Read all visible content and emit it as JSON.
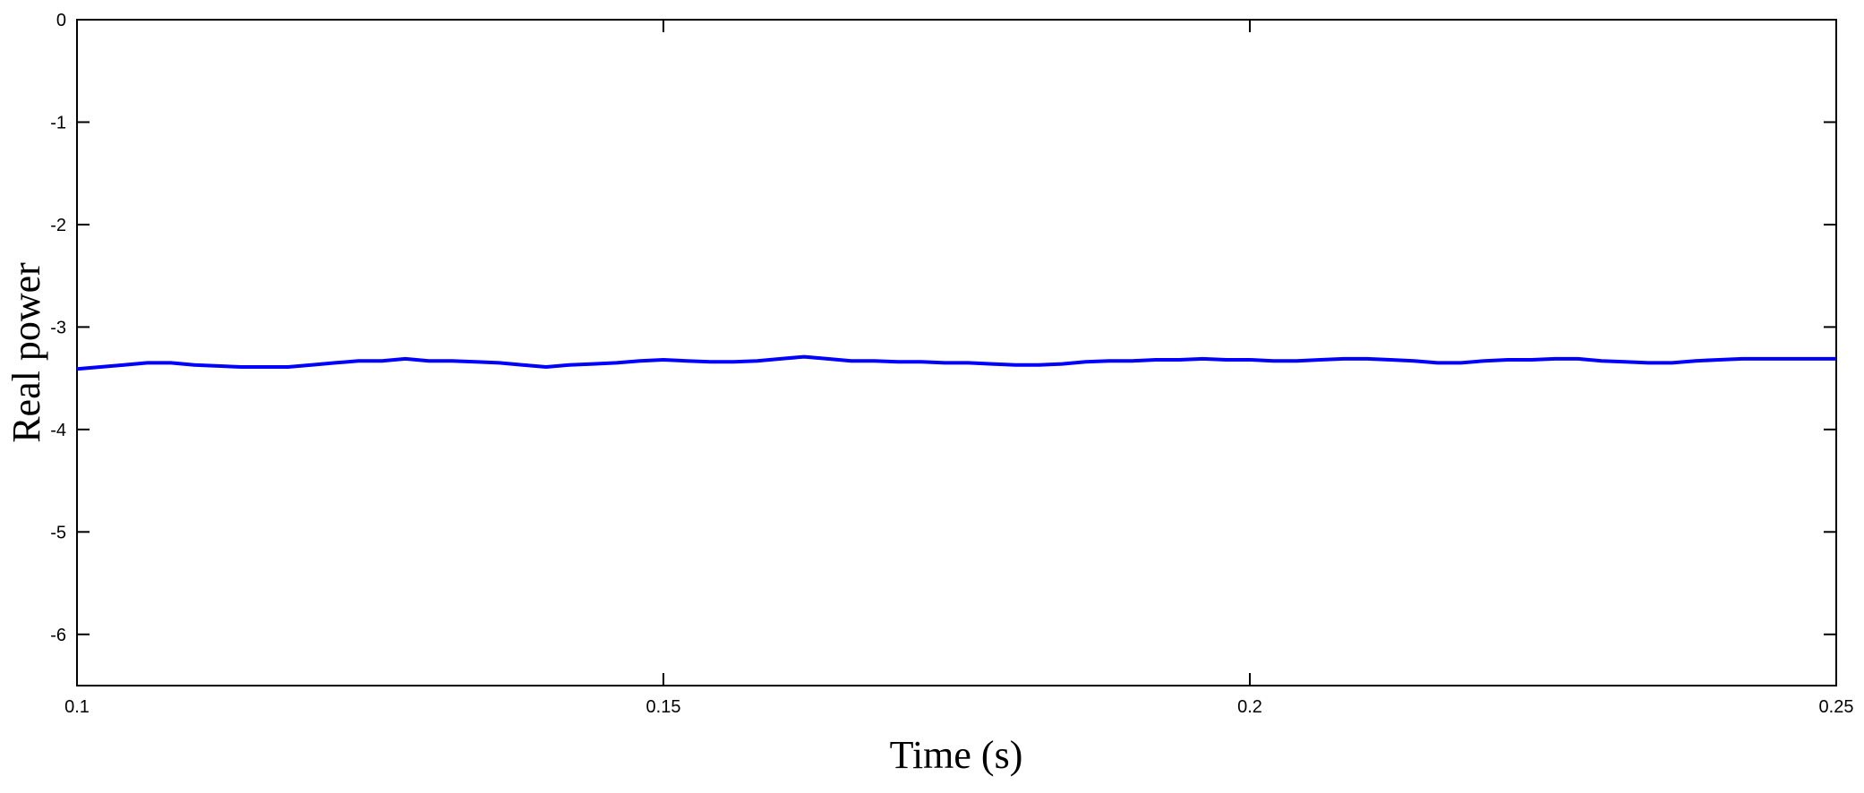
{
  "chart_data": {
    "type": "line",
    "xlabel": "Time (s)",
    "ylabel": "Real power",
    "xlim": [
      0.1,
      0.25
    ],
    "ylim": [
      -6.5,
      0
    ],
    "xticks": [
      0.1,
      0.15,
      0.2,
      0.25
    ],
    "xtick_labels": [
      "0.1",
      "0.15",
      "0.2",
      "0.25"
    ],
    "yticks": [
      0,
      -1,
      -2,
      -3,
      -4,
      -5,
      -6
    ],
    "ytick_labels": [
      "0",
      "-1",
      "-2",
      "-3",
      "-4",
      "-5",
      "-6"
    ],
    "grid": false,
    "series": [
      {
        "color": "#0000ff",
        "x": [
          0.1,
          0.102,
          0.104,
          0.106,
          0.108,
          0.11,
          0.112,
          0.114,
          0.116,
          0.118,
          0.12,
          0.122,
          0.124,
          0.126,
          0.128,
          0.13,
          0.132,
          0.134,
          0.136,
          0.138,
          0.14,
          0.142,
          0.144,
          0.146,
          0.148,
          0.15,
          0.152,
          0.154,
          0.156,
          0.158,
          0.16,
          0.162,
          0.164,
          0.166,
          0.168,
          0.17,
          0.172,
          0.174,
          0.176,
          0.178,
          0.18,
          0.182,
          0.184,
          0.186,
          0.188,
          0.19,
          0.192,
          0.194,
          0.196,
          0.198,
          0.2,
          0.202,
          0.204,
          0.206,
          0.208,
          0.21,
          0.212,
          0.214,
          0.216,
          0.218,
          0.22,
          0.222,
          0.224,
          0.226,
          0.228,
          0.23,
          0.232,
          0.234,
          0.236,
          0.238,
          0.24,
          0.242,
          0.244,
          0.246,
          0.248,
          0.25
        ],
        "y": [
          -3.41,
          -3.39,
          -3.37,
          -3.35,
          -3.35,
          -3.37,
          -3.38,
          -3.39,
          -3.39,
          -3.39,
          -3.37,
          -3.35,
          -3.33,
          -3.33,
          -3.31,
          -3.33,
          -3.33,
          -3.34,
          -3.35,
          -3.37,
          -3.39,
          -3.37,
          -3.36,
          -3.35,
          -3.33,
          -3.32,
          -3.33,
          -3.34,
          -3.34,
          -3.33,
          -3.31,
          -3.29,
          -3.31,
          -3.33,
          -3.33,
          -3.34,
          -3.34,
          -3.35,
          -3.35,
          -3.36,
          -3.37,
          -3.37,
          -3.36,
          -3.34,
          -3.33,
          -3.33,
          -3.32,
          -3.32,
          -3.31,
          -3.32,
          -3.32,
          -3.33,
          -3.33,
          -3.32,
          -3.31,
          -3.31,
          -3.32,
          -3.33,
          -3.35,
          -3.35,
          -3.33,
          -3.32,
          -3.32,
          -3.31,
          -3.31,
          -3.33,
          -3.34,
          -3.35,
          -3.35,
          -3.33,
          -3.32,
          -3.31,
          -3.31,
          -3.31,
          -3.31,
          -3.31
        ]
      }
    ]
  }
}
